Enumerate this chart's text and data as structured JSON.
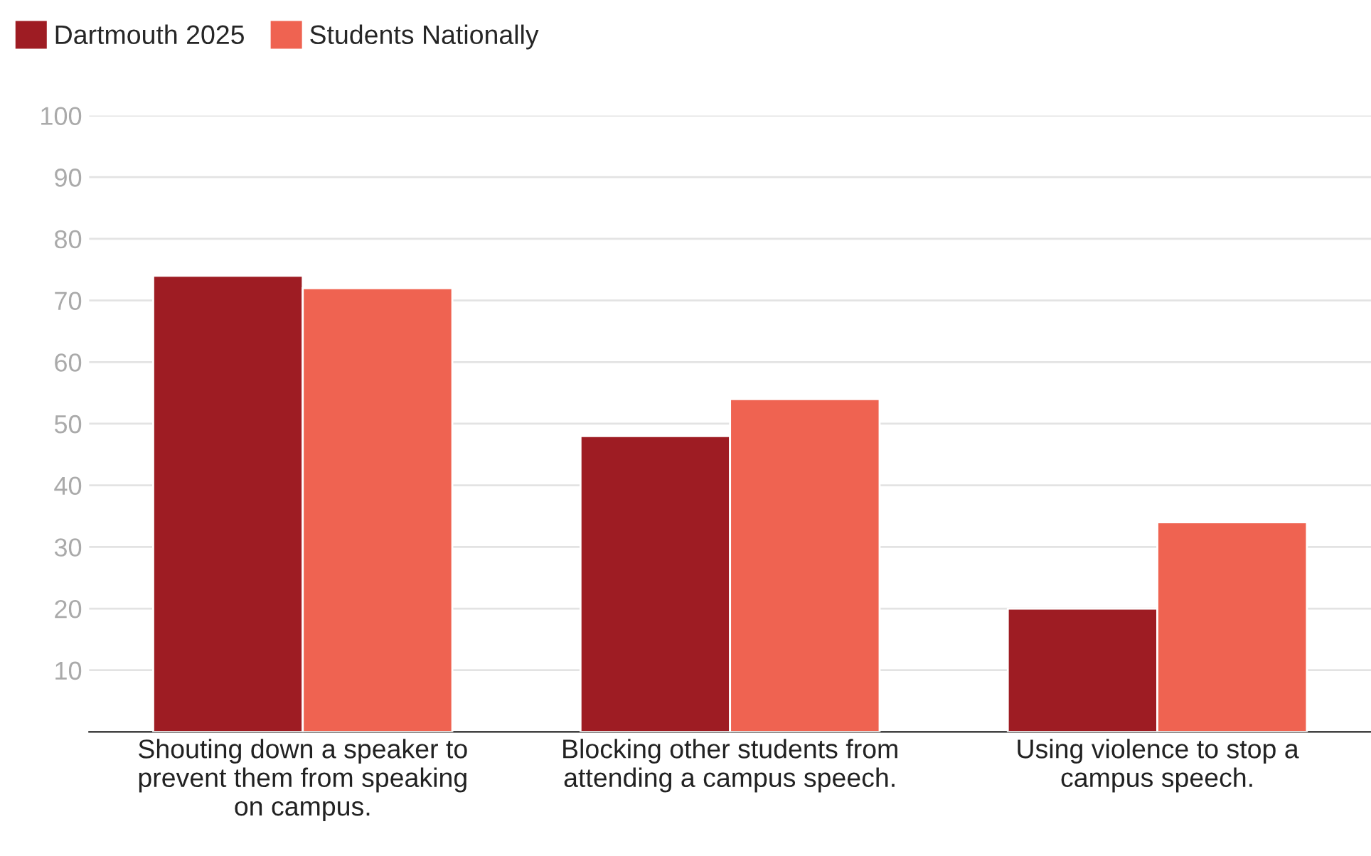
{
  "chart_data": {
    "type": "bar",
    "categories": [
      "Shouting down a speaker to prevent them from speaking on campus.",
      "Blocking other students from attending a campus speech.",
      "Using violence to stop a campus speech."
    ],
    "series": [
      {
        "name": "Dartmouth 2025",
        "color": "#9e1c23",
        "values": [
          74,
          48,
          20
        ]
      },
      {
        "name": "Students Nationally",
        "color": "#ef6351",
        "values": [
          72,
          54,
          34
        ]
      }
    ],
    "ylim": [
      0,
      100
    ],
    "yticks": [
      10,
      20,
      30,
      40,
      50,
      60,
      70,
      80,
      90,
      100
    ],
    "grid": "y",
    "legend": "top left"
  }
}
